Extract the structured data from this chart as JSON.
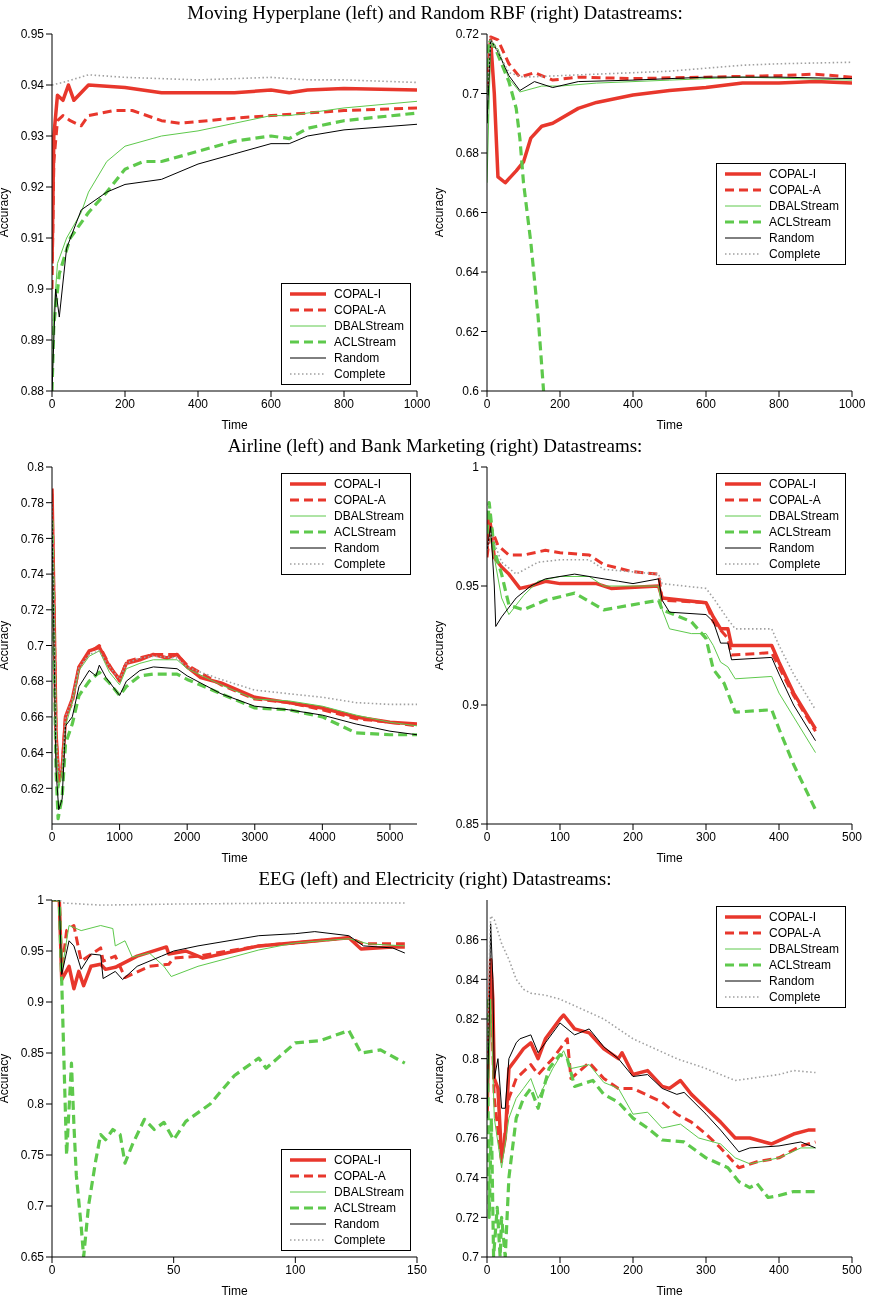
{
  "chart_data": [
    {
      "type": "line",
      "title": "Moving Hyperplane (left) and Random RBF (right) Datastreams:",
      "xlabel": "Time",
      "ylabel": "Accuracy",
      "xlim": [
        0,
        1000
      ],
      "xticks": [
        0,
        200,
        400,
        600,
        800,
        1000
      ],
      "ylim": [
        0.88,
        0.95
      ],
      "yticks": [
        0.88,
        0.89,
        0.9,
        0.91,
        0.92,
        0.93,
        0.94,
        0.95
      ],
      "legend": "bottom right",
      "series": [
        {
          "name": "COPAL-I",
          "color": "#e8372c",
          "line_style": "solid",
          "x": [
            0,
            5,
            15,
            30,
            45,
            60,
            100,
            200,
            300,
            400,
            500,
            600,
            650,
            700,
            800,
            1000
          ],
          "values": [
            0.905,
            0.93,
            0.938,
            0.937,
            0.94,
            0.937,
            0.94,
            0.9395,
            0.9385,
            0.9385,
            0.9385,
            0.939,
            0.9385,
            0.939,
            0.9393,
            0.939
          ]
        },
        {
          "name": "COPAL-A",
          "color": "#e8372c",
          "line_style": "dashed",
          "x": [
            0,
            5,
            15,
            30,
            50,
            80,
            100,
            170,
            220,
            300,
            350,
            500,
            600,
            700,
            800,
            1000
          ],
          "values": [
            0.9,
            0.925,
            0.933,
            0.934,
            0.933,
            0.932,
            0.934,
            0.935,
            0.935,
            0.933,
            0.9325,
            0.9335,
            0.934,
            0.9345,
            0.935,
            0.9355
          ]
        },
        {
          "name": "DBALStream",
          "color": "#5ec94c",
          "line_style": "solid",
          "x": [
            0,
            5,
            15,
            40,
            80,
            100,
            150,
            200,
            300,
            400,
            500,
            600,
            650,
            800,
            1000
          ],
          "values": [
            0.88,
            0.895,
            0.905,
            0.91,
            0.915,
            0.919,
            0.925,
            0.928,
            0.93,
            0.931,
            0.9325,
            0.934,
            0.934,
            0.9355,
            0.9368
          ]
        },
        {
          "name": "ACLStream",
          "color": "#5ec94c",
          "line_style": "dashed",
          "x": [
            0,
            5,
            20,
            50,
            100,
            150,
            200,
            250,
            300,
            400,
            500,
            600,
            650,
            700,
            800,
            1000
          ],
          "values": [
            0.88,
            0.893,
            0.903,
            0.91,
            0.915,
            0.919,
            0.9235,
            0.925,
            0.925,
            0.927,
            0.929,
            0.93,
            0.9295,
            0.9315,
            0.933,
            0.9345
          ]
        },
        {
          "name": "Random",
          "color": "#000000",
          "line_style": "solid",
          "x": [
            0,
            10,
            20,
            40,
            80,
            150,
            200,
            300,
            400,
            500,
            600,
            650,
            700,
            800,
            1000
          ],
          "values": [
            0.88,
            0.9,
            0.8945,
            0.908,
            0.9155,
            0.919,
            0.9205,
            0.9215,
            0.9245,
            0.9265,
            0.9285,
            0.9285,
            0.93,
            0.9312,
            0.9323
          ]
        },
        {
          "name": "Complete",
          "color": "#a0a0a0",
          "line_style": "dotted",
          "x": [
            0,
            30,
            100,
            200,
            400,
            600,
            700,
            800,
            1000
          ],
          "values": [
            0.94,
            0.9405,
            0.942,
            0.9415,
            0.941,
            0.9415,
            0.941,
            0.941,
            0.9405
          ]
        }
      ]
    },
    {
      "type": "line",
      "xlabel": "Time",
      "ylabel": "Accuracy",
      "xlim": [
        0,
        1000
      ],
      "xticks": [
        0,
        200,
        400,
        600,
        800,
        1000
      ],
      "ylim": [
        0.6,
        0.72
      ],
      "yticks": [
        0.6,
        0.62,
        0.64,
        0.66,
        0.68,
        0.7,
        0.72
      ],
      "legend": "right",
      "series": [
        {
          "name": "COPAL-I",
          "color": "#e8372c",
          "line_style": "solid",
          "x": [
            0,
            10,
            20,
            30,
            50,
            80,
            100,
            120,
            150,
            180,
            250,
            300,
            400,
            500,
            600,
            700,
            800,
            900,
            1000
          ],
          "values": [
            0.7,
            0.718,
            0.7,
            0.672,
            0.67,
            0.674,
            0.677,
            0.685,
            0.689,
            0.69,
            0.695,
            0.697,
            0.6995,
            0.701,
            0.702,
            0.7035,
            0.7035,
            0.704,
            0.7035
          ]
        },
        {
          "name": "COPAL-A",
          "color": "#e8372c",
          "line_style": "dashed",
          "x": [
            0,
            10,
            30,
            60,
            90,
            130,
            180,
            250,
            400,
            600,
            800,
            900,
            1000
          ],
          "values": [
            0.7,
            0.719,
            0.718,
            0.71,
            0.7055,
            0.707,
            0.7045,
            0.7055,
            0.705,
            0.7055,
            0.706,
            0.7065,
            0.7055
          ]
        },
        {
          "name": "DBALStream",
          "color": "#5ec94c",
          "line_style": "solid",
          "x": [
            0,
            10,
            30,
            60,
            90,
            150,
            200,
            300,
            500,
            700,
            1000
          ],
          "values": [
            0.67,
            0.716,
            0.715,
            0.705,
            0.7005,
            0.7025,
            0.7025,
            0.7035,
            0.7045,
            0.7055,
            0.7045
          ]
        },
        {
          "name": "ACLStream",
          "color": "#5ec94c",
          "line_style": "dashed",
          "x": [
            0,
            5,
            20,
            40,
            60,
            80,
            90,
            100,
            120,
            140,
            155
          ],
          "values": [
            0.69,
            0.718,
            0.716,
            0.71,
            0.704,
            0.695,
            0.685,
            0.67,
            0.65,
            0.625,
            0.6
          ]
        },
        {
          "name": "Random",
          "color": "#000000",
          "line_style": "solid",
          "x": [
            0,
            10,
            30,
            60,
            90,
            130,
            180,
            250,
            400,
            600,
            800,
            1000
          ],
          "values": [
            0.69,
            0.718,
            0.714,
            0.706,
            0.701,
            0.704,
            0.702,
            0.704,
            0.7045,
            0.7055,
            0.7055,
            0.705
          ]
        },
        {
          "name": "Complete",
          "color": "#a0a0a0",
          "line_style": "dotted",
          "x": [
            0,
            10,
            30,
            60,
            100,
            200,
            300,
            500,
            700,
            800,
            1000
          ],
          "values": [
            0.7,
            0.718,
            0.714,
            0.707,
            0.7055,
            0.706,
            0.7065,
            0.7075,
            0.7095,
            0.71,
            0.7105
          ]
        }
      ]
    },
    {
      "type": "line",
      "title": "Airline (left) and Bank Marketing (right) Datastreams:",
      "xlabel": "Time",
      "ylabel": "Accuracy",
      "xlim": [
        0,
        5400
      ],
      "xticks": [
        0,
        1000,
        2000,
        3000,
        4000,
        5000
      ],
      "ylim": [
        0.6,
        0.8
      ],
      "yticks": [
        0.62,
        0.64,
        0.66,
        0.68,
        0.7,
        0.72,
        0.74,
        0.76,
        0.78,
        0.8
      ],
      "legend": "top right",
      "series": [
        {
          "name": "COPAL-I",
          "color": "#e8372c",
          "line_style": "solid",
          "x": [
            0,
            30,
            60,
            100,
            150,
            200,
            300,
            400,
            550,
            700,
            850,
            1000,
            1100,
            1300,
            1500,
            1700,
            1850,
            2000,
            2200,
            2500,
            3000,
            3500,
            4000,
            4500,
            5000,
            5400
          ],
          "values": [
            0.788,
            0.72,
            0.65,
            0.625,
            0.63,
            0.66,
            0.67,
            0.688,
            0.697,
            0.699,
            0.688,
            0.681,
            0.69,
            0.692,
            0.695,
            0.693,
            0.695,
            0.688,
            0.682,
            0.679,
            0.671,
            0.668,
            0.665,
            0.66,
            0.657,
            0.656
          ]
        },
        {
          "name": "COPAL-A",
          "color": "#e8372c",
          "line_style": "dashed",
          "x": [
            0,
            30,
            60,
            100,
            150,
            200,
            300,
            400,
            550,
            700,
            850,
            1000,
            1100,
            1300,
            1500,
            1850,
            2000,
            2500,
            3000,
            3500,
            4000,
            4500,
            5000,
            5400
          ],
          "values": [
            0.785,
            0.72,
            0.65,
            0.622,
            0.632,
            0.66,
            0.668,
            0.688,
            0.696,
            0.7,
            0.689,
            0.68,
            0.691,
            0.693,
            0.695,
            0.695,
            0.689,
            0.678,
            0.67,
            0.668,
            0.664,
            0.659,
            0.657,
            0.655
          ]
        },
        {
          "name": "DBALStream",
          "color": "#5ec94c",
          "line_style": "solid",
          "x": [
            0,
            30,
            60,
            100,
            150,
            200,
            300,
            400,
            550,
            700,
            850,
            1000,
            1100,
            1300,
            1500,
            1850,
            2000,
            2500,
            3000,
            3500,
            4000,
            4500,
            5000,
            5400
          ],
          "values": [
            0.77,
            0.7,
            0.64,
            0.62,
            0.63,
            0.655,
            0.668,
            0.686,
            0.694,
            0.697,
            0.685,
            0.678,
            0.687,
            0.69,
            0.692,
            0.692,
            0.687,
            0.678,
            0.67,
            0.669,
            0.666,
            0.661,
            0.657,
            0.655
          ]
        },
        {
          "name": "ACLStream",
          "color": "#5ec94c",
          "line_style": "dashed",
          "x": [
            0,
            30,
            60,
            90,
            150,
            200,
            300,
            400,
            550,
            700,
            850,
            1000,
            1100,
            1300,
            1500,
            1850,
            2000,
            2500,
            3000,
            3500,
            4000,
            4500,
            5000,
            5400
          ],
          "values": [
            0.77,
            0.7,
            0.63,
            0.603,
            0.615,
            0.645,
            0.656,
            0.672,
            0.68,
            0.685,
            0.679,
            0.672,
            0.677,
            0.683,
            0.684,
            0.684,
            0.681,
            0.673,
            0.665,
            0.664,
            0.66,
            0.651,
            0.65,
            0.65
          ]
        },
        {
          "name": "Random",
          "color": "#000000",
          "line_style": "solid",
          "x": [
            0,
            30,
            60,
            100,
            150,
            200,
            300,
            400,
            550,
            650,
            700,
            800,
            1000,
            1100,
            1300,
            1500,
            1850,
            2000,
            2500,
            3000,
            3500,
            4000,
            4500,
            5000,
            5400
          ],
          "values": [
            0.77,
            0.7,
            0.63,
            0.608,
            0.614,
            0.655,
            0.66,
            0.677,
            0.686,
            0.683,
            0.689,
            0.682,
            0.672,
            0.68,
            0.686,
            0.688,
            0.687,
            0.683,
            0.673,
            0.666,
            0.664,
            0.661,
            0.656,
            0.652,
            0.65
          ]
        },
        {
          "name": "Complete",
          "color": "#a0a0a0",
          "line_style": "dotted",
          "x": [
            0,
            30,
            60,
            100,
            150,
            200,
            300,
            400,
            550,
            700,
            850,
            1000,
            1100,
            1300,
            1500,
            1850,
            2000,
            2200,
            2500,
            3000,
            3500,
            4000,
            4500,
            5000,
            5400
          ],
          "values": [
            0.78,
            0.72,
            0.65,
            0.628,
            0.63,
            0.66,
            0.67,
            0.688,
            0.695,
            0.697,
            0.688,
            0.681,
            0.69,
            0.693,
            0.694,
            0.693,
            0.688,
            0.685,
            0.681,
            0.675,
            0.673,
            0.671,
            0.668,
            0.667,
            0.667
          ]
        }
      ]
    },
    {
      "type": "line",
      "xlabel": "Time",
      "ylabel": "Accuracy",
      "xlim": [
        0,
        500
      ],
      "xticks": [
        0,
        100,
        200,
        300,
        400,
        500
      ],
      "ylim": [
        0.85,
        1
      ],
      "yticks": [
        0.85,
        0.9,
        0.95,
        1
      ],
      "legend": "top right",
      "series": [
        {
          "name": "COPAL-I",
          "color": "#e8372c",
          "line_style": "solid",
          "x": [
            0,
            3,
            10,
            20,
            30,
            45,
            60,
            80,
            100,
            150,
            170,
            235,
            240,
            300,
            310,
            320,
            330,
            335,
            390,
            400,
            420,
            450
          ],
          "values": [
            0.965,
            0.98,
            0.962,
            0.958,
            0.955,
            0.949,
            0.95,
            0.952,
            0.951,
            0.951,
            0.949,
            0.95,
            0.945,
            0.943,
            0.937,
            0.932,
            0.932,
            0.925,
            0.925,
            0.918,
            0.905,
            0.89
          ]
        },
        {
          "name": "COPAL-A",
          "color": "#e8372c",
          "line_style": "dashed",
          "x": [
            0,
            5,
            15,
            30,
            50,
            80,
            100,
            140,
            160,
            200,
            235,
            240,
            300,
            310,
            330,
            335,
            390,
            400,
            420,
            450
          ],
          "values": [
            0.962,
            0.975,
            0.967,
            0.963,
            0.963,
            0.965,
            0.964,
            0.963,
            0.959,
            0.956,
            0.955,
            0.944,
            0.943,
            0.935,
            0.928,
            0.921,
            0.922,
            0.916,
            0.904,
            0.889
          ]
        },
        {
          "name": "DBALStream",
          "color": "#5ec94c",
          "line_style": "solid",
          "x": [
            0,
            5,
            10,
            20,
            30,
            50,
            70,
            100,
            140,
            160,
            235,
            240,
            250,
            280,
            300,
            310,
            320,
            330,
            340,
            390,
            400,
            420,
            450
          ],
          "values": [
            0.975,
            0.97,
            0.962,
            0.945,
            0.938,
            0.946,
            0.952,
            0.954,
            0.954,
            0.95,
            0.95,
            0.94,
            0.932,
            0.93,
            0.93,
            0.925,
            0.918,
            0.916,
            0.911,
            0.912,
            0.905,
            0.895,
            0.88
          ]
        },
        {
          "name": "ACLStream",
          "color": "#5ec94c",
          "line_style": "dashed",
          "x": [
            0,
            3,
            10,
            20,
            30,
            50,
            80,
            120,
            160,
            235,
            240,
            280,
            300,
            310,
            325,
            340,
            390,
            400,
            420,
            450
          ],
          "values": [
            0.972,
            0.985,
            0.965,
            0.955,
            0.942,
            0.94,
            0.944,
            0.947,
            0.94,
            0.944,
            0.94,
            0.935,
            0.928,
            0.915,
            0.909,
            0.897,
            0.898,
            0.89,
            0.875,
            0.856
          ]
        },
        {
          "name": "Random",
          "color": "#000000",
          "line_style": "solid",
          "x": [
            0,
            5,
            10,
            12,
            20,
            40,
            60,
            80,
            120,
            180,
            200,
            235,
            240,
            250,
            300,
            310,
            320,
            330,
            335,
            390,
            400,
            420,
            450
          ],
          "values": [
            0.965,
            0.975,
            0.95,
            0.933,
            0.937,
            0.945,
            0.95,
            0.953,
            0.955,
            0.952,
            0.951,
            0.953,
            0.944,
            0.939,
            0.938,
            0.935,
            0.926,
            0.926,
            0.919,
            0.92,
            0.913,
            0.9,
            0.885
          ]
        },
        {
          "name": "Complete",
          "color": "#a0a0a0",
          "line_style": "dotted",
          "x": [
            0,
            5,
            20,
            40,
            70,
            100,
            140,
            160,
            235,
            240,
            300,
            310,
            330,
            340,
            390,
            400,
            420,
            450
          ],
          "values": [
            0.965,
            0.972,
            0.96,
            0.955,
            0.96,
            0.961,
            0.961,
            0.957,
            0.955,
            0.951,
            0.949,
            0.945,
            0.936,
            0.932,
            0.932,
            0.925,
            0.913,
            0.898
          ]
        }
      ]
    },
    {
      "type": "line",
      "title": "EEG (left) and Electricity (right) Datastreams:",
      "xlabel": "Time",
      "ylabel": "Accuracy",
      "xlim": [
        0,
        150
      ],
      "xticks": [
        0,
        50,
        100,
        150
      ],
      "ylim": [
        0.65,
        1
      ],
      "yticks": [
        0.65,
        0.7,
        0.75,
        0.8,
        0.85,
        0.9,
        0.95,
        1
      ],
      "legend": "bottom right",
      "series": [
        {
          "name": "COPAL-I",
          "color": "#e8372c",
          "line_style": "solid",
          "x": [
            0,
            3,
            4,
            7,
            9,
            11,
            13,
            16,
            20,
            22,
            26,
            35,
            47,
            48,
            55,
            62,
            85,
            100,
            122,
            127,
            140,
            145
          ],
          "values": [
            1,
            1,
            0.922,
            0.935,
            0.913,
            0.93,
            0.916,
            0.935,
            0.937,
            0.932,
            0.934,
            0.945,
            0.954,
            0.947,
            0.95,
            0.943,
            0.955,
            0.958,
            0.963,
            0.952,
            0.954,
            0.954
          ]
        },
        {
          "name": "COPAL-A",
          "color": "#e8372c",
          "line_style": "dashed",
          "x": [
            0,
            3,
            4,
            6,
            9,
            12,
            20,
            21,
            26,
            30,
            40,
            48,
            50,
            60,
            85,
            100,
            122,
            128,
            145
          ],
          "values": [
            1,
            1,
            0.93,
            0.97,
            0.975,
            0.94,
            0.953,
            0.94,
            0.945,
            0.924,
            0.935,
            0.937,
            0.943,
            0.945,
            0.955,
            0.958,
            0.963,
            0.957,
            0.957
          ]
        },
        {
          "name": "DBALStream",
          "color": "#5ec94c",
          "line_style": "solid",
          "x": [
            0,
            3,
            4,
            7,
            12,
            20,
            25,
            26,
            30,
            33,
            40,
            46,
            49,
            60,
            85,
            100,
            122,
            130,
            145
          ],
          "values": [
            1,
            1,
            0.93,
            0.975,
            0.97,
            0.975,
            0.972,
            0.955,
            0.96,
            0.944,
            0.948,
            0.935,
            0.925,
            0.935,
            0.951,
            0.958,
            0.962,
            0.957,
            0.955
          ]
        },
        {
          "name": "ACLStream",
          "color": "#5ec94c",
          "line_style": "dashed",
          "x": [
            0,
            3,
            4,
            6,
            8,
            9,
            10,
            12,
            13,
            15,
            18,
            20,
            22,
            25,
            28,
            30,
            33,
            38,
            42,
            46,
            50,
            55,
            65,
            75,
            85,
            88,
            100,
            110,
            122,
            127,
            135,
            145
          ],
          "values": [
            1,
            1,
            0.92,
            0.75,
            0.84,
            0.78,
            0.73,
            0.68,
            0.65,
            0.7,
            0.745,
            0.77,
            0.765,
            0.775,
            0.77,
            0.742,
            0.76,
            0.785,
            0.775,
            0.782,
            0.765,
            0.783,
            0.8,
            0.828,
            0.845,
            0.835,
            0.86,
            0.862,
            0.872,
            0.85,
            0.853,
            0.84
          ]
        },
        {
          "name": "Random",
          "color": "#000000",
          "line_style": "solid",
          "x": [
            0,
            3,
            4,
            7,
            9,
            12,
            16,
            20,
            21,
            26,
            29,
            35,
            45,
            50,
            60,
            85,
            100,
            108,
            122,
            128,
            140,
            145
          ],
          "values": [
            1,
            1,
            0.927,
            0.96,
            0.955,
            0.932,
            0.947,
            0.946,
            0.923,
            0.93,
            0.922,
            0.935,
            0.945,
            0.95,
            0.955,
            0.965,
            0.967,
            0.969,
            0.965,
            0.955,
            0.953,
            0.948
          ]
        },
        {
          "name": "Complete",
          "color": "#a0a0a0",
          "line_style": "dotted",
          "x": [
            0,
            3,
            5,
            20,
            50,
            100,
            145
          ],
          "values": [
            1,
            1,
            0.997,
            0.995,
            0.996,
            0.997,
            0.997
          ]
        }
      ]
    },
    {
      "type": "line",
      "xlabel": "Time",
      "ylabel": "Accuracy",
      "xlim": [
        0,
        500
      ],
      "xticks": [
        0,
        100,
        200,
        300,
        400,
        500
      ],
      "ylim": [
        0.7,
        0.88
      ],
      "yticks": [
        0.7,
        0.72,
        0.74,
        0.76,
        0.78,
        0.8,
        0.82,
        0.84,
        0.86
      ],
      "legend": "top right",
      "series": [
        {
          "name": "COPAL-I",
          "color": "#e8372c",
          "line_style": "solid",
          "x": [
            0,
            3,
            5,
            8,
            10,
            15,
            20,
            25,
            30,
            40,
            50,
            60,
            70,
            80,
            100,
            105,
            120,
            140,
            160,
            180,
            185,
            200,
            220,
            240,
            250,
            265,
            280,
            300,
            320,
            340,
            360,
            390,
            420,
            440,
            450
          ],
          "values": [
            0.77,
            0.82,
            0.85,
            0.83,
            0.79,
            0.785,
            0.75,
            0.76,
            0.795,
            0.8,
            0.805,
            0.808,
            0.8,
            0.81,
            0.82,
            0.822,
            0.815,
            0.813,
            0.805,
            0.8,
            0.803,
            0.792,
            0.794,
            0.786,
            0.785,
            0.789,
            0.782,
            0.775,
            0.768,
            0.76,
            0.76,
            0.757,
            0.762,
            0.764,
            0.764
          ]
        },
        {
          "name": "COPAL-A",
          "color": "#e8372c",
          "line_style": "dashed",
          "x": [
            0,
            3,
            5,
            10,
            20,
            30,
            40,
            60,
            70,
            90,
            110,
            115,
            140,
            160,
            180,
            200,
            240,
            260,
            280,
            300,
            320,
            345,
            370,
            400,
            430,
            450
          ],
          "values": [
            0.78,
            0.82,
            0.84,
            0.78,
            0.748,
            0.78,
            0.79,
            0.797,
            0.792,
            0.8,
            0.81,
            0.79,
            0.798,
            0.79,
            0.785,
            0.785,
            0.778,
            0.772,
            0.768,
            0.762,
            0.755,
            0.745,
            0.748,
            0.75,
            0.756,
            0.758
          ]
        },
        {
          "name": "DBALStream",
          "color": "#5ec94c",
          "line_style": "solid",
          "x": [
            0,
            3,
            5,
            10,
            20,
            30,
            40,
            50,
            60,
            70,
            90,
            105,
            115,
            140,
            160,
            180,
            200,
            220,
            240,
            265,
            290,
            320,
            340,
            360,
            400,
            430,
            450
          ],
          "values": [
            0.77,
            0.8,
            0.83,
            0.77,
            0.745,
            0.77,
            0.78,
            0.785,
            0.79,
            0.78,
            0.795,
            0.804,
            0.795,
            0.797,
            0.788,
            0.785,
            0.772,
            0.773,
            0.765,
            0.767,
            0.76,
            0.757,
            0.75,
            0.747,
            0.75,
            0.755,
            0.755
          ]
        },
        {
          "name": "ACLStream",
          "color": "#5ec94c",
          "line_style": "dashed",
          "x": [
            0,
            3,
            6,
            9,
            14,
            18,
            20,
            25,
            30,
            40,
            50,
            60,
            70,
            85,
            100,
            110,
            120,
            145,
            160,
            180,
            200,
            220,
            240,
            270,
            300,
            330,
            345,
            360,
            370,
            385,
            400,
            420,
            450
          ],
          "values": [
            0.83,
            0.72,
            0.77,
            0.7,
            0.725,
            0.7,
            0.72,
            0.7,
            0.74,
            0.77,
            0.78,
            0.785,
            0.775,
            0.795,
            0.802,
            0.8,
            0.786,
            0.789,
            0.782,
            0.778,
            0.77,
            0.765,
            0.759,
            0.758,
            0.75,
            0.745,
            0.738,
            0.735,
            0.737,
            0.73,
            0.731,
            0.733,
            0.733
          ]
        },
        {
          "name": "Random",
          "color": "#000000",
          "line_style": "solid",
          "x": [
            0,
            3,
            5,
            8,
            10,
            15,
            20,
            25,
            30,
            40,
            45,
            60,
            70,
            80,
            100,
            120,
            140,
            160,
            180,
            200,
            220,
            240,
            260,
            270,
            300,
            320,
            345,
            360,
            400,
            430,
            450
          ],
          "values": [
            0.77,
            0.82,
            0.868,
            0.84,
            0.79,
            0.8,
            0.775,
            0.775,
            0.8,
            0.808,
            0.81,
            0.812,
            0.803,
            0.808,
            0.818,
            0.812,
            0.815,
            0.806,
            0.8,
            0.791,
            0.792,
            0.785,
            0.782,
            0.783,
            0.772,
            0.764,
            0.753,
            0.755,
            0.756,
            0.758,
            0.755
          ]
        },
        {
          "name": "Complete",
          "color": "#a0a0a0",
          "line_style": "dotted",
          "x": [
            0,
            5,
            10,
            20,
            30,
            40,
            50,
            60,
            80,
            100,
            130,
            160,
            180,
            200,
            230,
            260,
            300,
            340,
            360,
            400,
            420,
            450
          ],
          "values": [
            0.8,
            0.872,
            0.87,
            0.858,
            0.85,
            0.84,
            0.835,
            0.833,
            0.832,
            0.83,
            0.825,
            0.82,
            0.815,
            0.81,
            0.805,
            0.8,
            0.795,
            0.789,
            0.79,
            0.792,
            0.794,
            0.793
          ]
        }
      ]
    }
  ]
}
